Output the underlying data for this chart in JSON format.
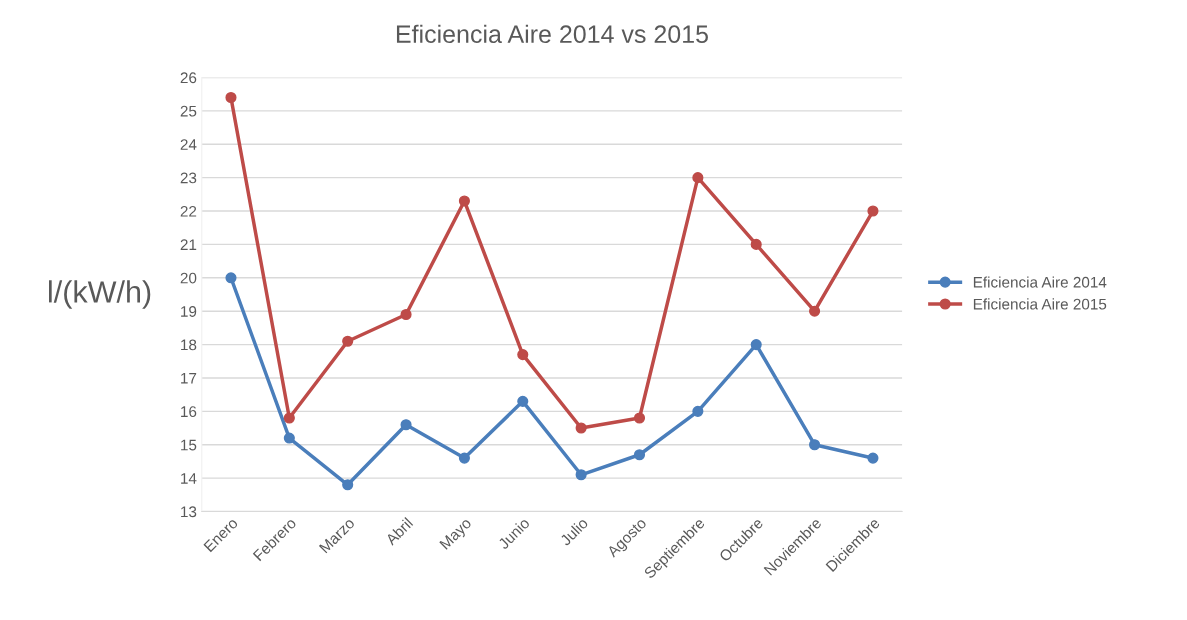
{
  "chart_data": {
    "type": "line",
    "title": "Eficiencia Aire 2014 vs 2015",
    "ylabel": "l/(kW/h)",
    "categories": [
      "Enero",
      "Febrero",
      "Marzo",
      "Abril",
      "Mayo",
      "Junio",
      "Julio",
      "Agosto",
      "Septiembre",
      "Octubre",
      "Noviembre",
      "Diciembre"
    ],
    "series": [
      {
        "name": "Eficiencia Aire 2014",
        "color": "#4a7ebb",
        "values": [
          20.0,
          15.2,
          13.8,
          15.6,
          14.6,
          16.3,
          14.1,
          14.7,
          16.0,
          18.0,
          15.0,
          14.6
        ]
      },
      {
        "name": "Eficiencia Aire 2015",
        "color": "#be4b48",
        "values": [
          25.4,
          15.8,
          18.1,
          18.9,
          22.3,
          17.7,
          15.5,
          15.8,
          23.0,
          21.0,
          19.0,
          22.0
        ]
      }
    ],
    "ylim": [
      13,
      26
    ],
    "yticks": [
      13,
      14,
      15,
      16,
      17,
      18,
      19,
      20,
      21,
      22,
      23,
      24,
      25,
      26
    ],
    "grid": "y",
    "legend": "right",
    "marker": "circle",
    "line_style": "solid"
  }
}
